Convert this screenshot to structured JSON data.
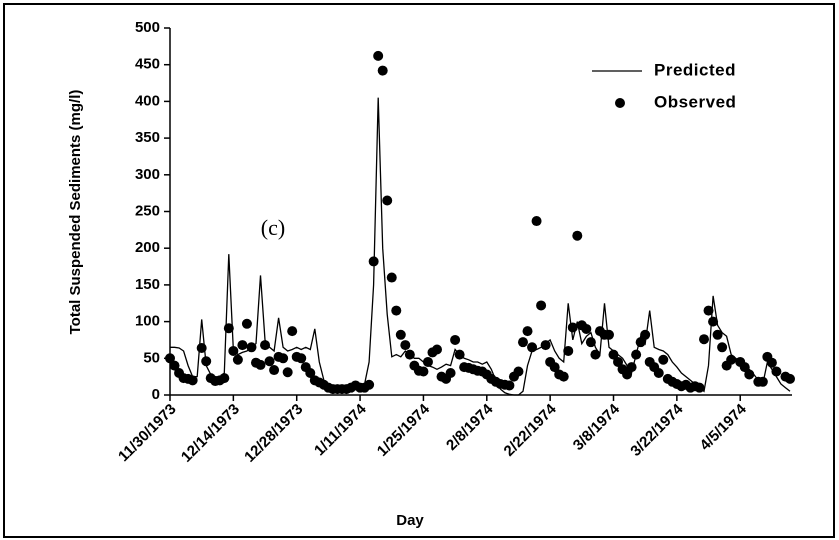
{
  "chart_data": {
    "type": "line-scatter",
    "annotation": "(c)",
    "x_label": "Day",
    "y_label": "Total Suspended Sediments (mg/l)",
    "legend": "upper right",
    "ylim": [
      0,
      500
    ],
    "yticks": [
      0,
      50,
      100,
      150,
      200,
      250,
      300,
      350,
      400,
      450,
      500
    ],
    "xlim": [
      "11/30/1973",
      "4/16/1974"
    ],
    "xticks": [
      "11/30/1973",
      "12/14/1973",
      "12/28/1973",
      "1/11/1974",
      "1/25/1974",
      "2/8/1974",
      "2/22/1974",
      "3/8/1974",
      "3/22/1974",
      "4/5/1974"
    ],
    "x": [
      "11/30/1973",
      "12/1/1973",
      "12/2/1973",
      "12/3/1973",
      "12/4/1973",
      "12/5/1973",
      "12/6/1973",
      "12/7/1973",
      "12/8/1973",
      "12/9/1973",
      "12/10/1973",
      "12/11/1973",
      "12/12/1973",
      "12/13/1973",
      "12/14/1973",
      "12/15/1973",
      "12/16/1973",
      "12/17/1973",
      "12/18/1973",
      "12/19/1973",
      "12/20/1973",
      "12/21/1973",
      "12/22/1973",
      "12/23/1973",
      "12/24/1973",
      "12/25/1973",
      "12/26/1973",
      "12/27/1973",
      "12/28/1973",
      "12/29/1973",
      "12/30/1973",
      "12/31/1973",
      "1/1/1974",
      "1/2/1974",
      "1/3/1974",
      "1/4/1974",
      "1/5/1974",
      "1/6/1974",
      "1/7/1974",
      "1/8/1974",
      "1/9/1974",
      "1/10/1974",
      "1/11/1974",
      "1/12/1974",
      "1/13/1974",
      "1/14/1974",
      "1/15/1974",
      "1/16/1974",
      "1/17/1974",
      "1/18/1974",
      "1/19/1974",
      "1/20/1974",
      "1/21/1974",
      "1/22/1974",
      "1/23/1974",
      "1/24/1974",
      "1/25/1974",
      "1/26/1974",
      "1/27/1974",
      "1/28/1974",
      "1/29/1974",
      "1/30/1974",
      "1/31/1974",
      "2/1/1974",
      "2/2/1974",
      "2/3/1974",
      "2/4/1974",
      "2/5/1974",
      "2/6/1974",
      "2/7/1974",
      "2/8/1974",
      "2/9/1974",
      "2/10/1974",
      "2/11/1974",
      "2/12/1974",
      "2/13/1974",
      "2/14/1974",
      "2/15/1974",
      "2/16/1974",
      "2/17/1974",
      "2/18/1974",
      "2/19/1974",
      "2/20/1974",
      "2/21/1974",
      "2/22/1974",
      "2/23/1974",
      "2/24/1974",
      "2/25/1974",
      "2/26/1974",
      "2/27/1974",
      "2/28/1974",
      "3/1/1974",
      "3/2/1974",
      "3/3/1974",
      "3/4/1974",
      "3/5/1974",
      "3/6/1974",
      "3/7/1974",
      "3/8/1974",
      "3/9/1974",
      "3/10/1974",
      "3/11/1974",
      "3/12/1974",
      "3/13/1974",
      "3/14/1974",
      "3/15/1974",
      "3/16/1974",
      "3/17/1974",
      "3/18/1974",
      "3/19/1974",
      "3/20/1974",
      "3/21/1974",
      "3/22/1974",
      "3/23/1974",
      "3/24/1974",
      "3/25/1974",
      "3/26/1974",
      "3/27/1974",
      "3/28/1974",
      "3/29/1974",
      "3/30/1974",
      "3/31/1974",
      "4/1/1974",
      "4/2/1974",
      "4/3/1974",
      "4/4/1974",
      "4/5/1974",
      "4/6/1974",
      "4/7/1974",
      "4/8/1974",
      "4/9/1974",
      "4/10/1974",
      "4/11/1974",
      "4/12/1974",
      "4/13/1974",
      "4/14/1974",
      "4/15/1974",
      "4/16/1974"
    ],
    "series": [
      {
        "name": "Predicted",
        "kind": "line",
        "color": "#000000",
        "values": [
          65,
          65,
          64,
          60,
          40,
          25,
          25,
          103,
          40,
          28,
          25,
          24,
          30,
          192,
          60,
          55,
          58,
          60,
          65,
          70,
          163,
          75,
          65,
          60,
          105,
          65,
          60,
          62,
          65,
          62,
          65,
          62,
          90,
          45,
          20,
          15,
          12,
          10,
          10,
          10,
          10,
          10,
          12,
          15,
          45,
          150,
          405,
          200,
          110,
          52,
          55,
          52,
          60,
          55,
          50,
          50,
          45,
          40,
          38,
          35,
          38,
          42,
          40,
          62,
          55,
          50,
          48,
          45,
          45,
          42,
          45,
          35,
          20,
          8,
          3,
          1,
          0,
          0,
          5,
          40,
          60,
          62,
          65,
          70,
          75,
          60,
          50,
          45,
          125,
          75,
          100,
          70,
          80,
          85,
          65,
          55,
          125,
          65,
          60,
          55,
          50,
          40,
          30,
          55,
          80,
          70,
          115,
          65,
          62,
          60,
          55,
          45,
          38,
          30,
          25,
          20,
          15,
          10,
          5,
          40,
          135,
          95,
          85,
          80,
          55,
          50,
          45,
          40,
          35,
          28,
          20,
          15,
          45,
          35,
          25,
          15,
          10,
          5
        ]
      },
      {
        "name": "Observed",
        "kind": "scatter",
        "color": "#000000",
        "values": [
          50,
          40,
          30,
          23,
          22,
          20,
          null,
          64,
          46,
          23,
          19,
          20,
          23,
          91,
          60,
          48,
          68,
          97,
          65,
          44,
          41,
          68,
          46,
          34,
          52,
          50,
          31,
          87,
          52,
          50,
          38,
          30,
          20,
          17,
          14,
          10,
          8,
          8,
          8,
          8,
          10,
          13,
          10,
          10,
          14,
          182,
          462,
          442,
          265,
          160,
          115,
          82,
          68,
          55,
          40,
          33,
          32,
          45,
          58,
          62,
          25,
          22,
          30,
          75,
          55,
          38,
          37,
          35,
          33,
          32,
          28,
          22,
          18,
          15,
          14,
          13,
          25,
          32,
          72,
          87,
          65,
          237,
          122,
          68,
          45,
          38,
          28,
          25,
          60,
          92,
          217,
          95,
          90,
          72,
          55,
          87,
          82,
          82,
          55,
          45,
          35,
          28,
          38,
          55,
          72,
          82,
          45,
          38,
          30,
          48,
          22,
          18,
          15,
          12,
          14,
          10,
          12,
          10,
          76,
          115,
          100,
          82,
          65,
          40,
          48,
          null,
          45,
          38,
          28,
          null,
          18,
          18,
          52,
          44,
          32,
          null,
          25,
          22
        ]
      }
    ]
  }
}
